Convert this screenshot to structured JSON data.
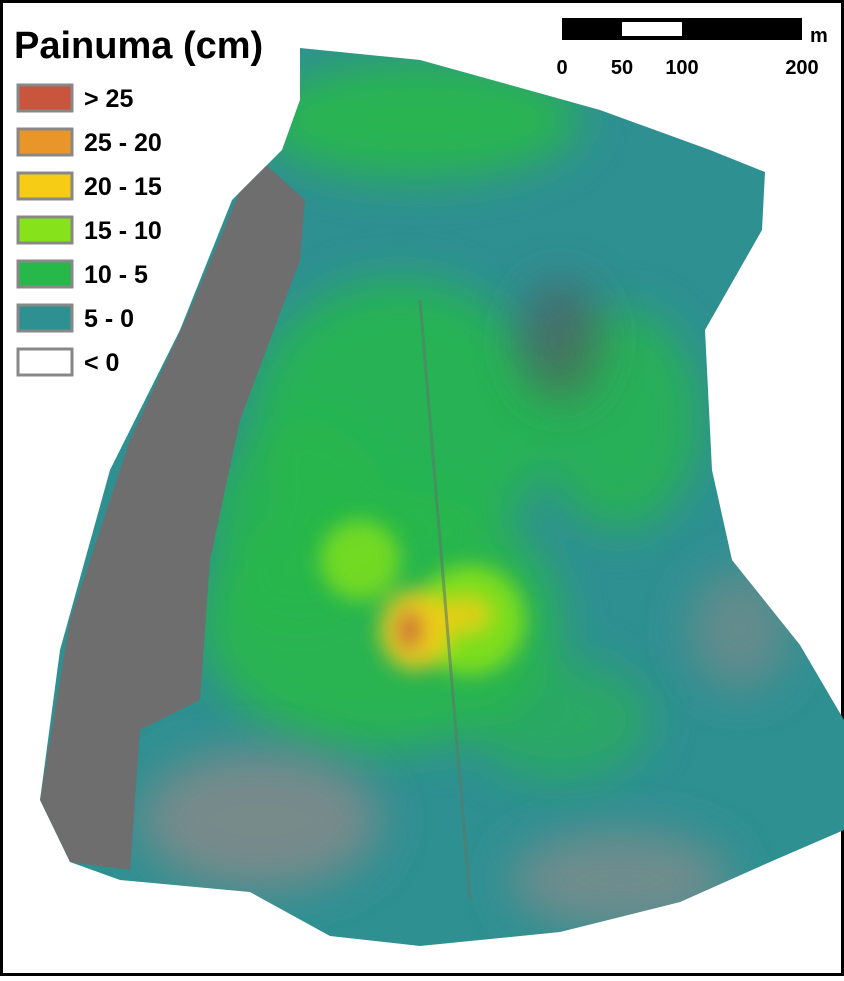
{
  "title": "Painuma (cm)",
  "legend": [
    {
      "label": "> 25",
      "color": "#c9553c"
    },
    {
      "label": "25 - 20",
      "color": "#e8952a"
    },
    {
      "label": "20 - 15",
      "color": "#f6cc15"
    },
    {
      "label": "15 - 10",
      "color": "#86e21b"
    },
    {
      "label": "10 - 5",
      "color": "#27b84a"
    },
    {
      "label": "5 - 0",
      "color": "#2f9092"
    },
    {
      "label": "< 0",
      "color": "#ffffff"
    }
  ],
  "scale_bar": {
    "ticks": [
      0,
      50,
      100,
      200
    ],
    "unit": "m"
  }
}
